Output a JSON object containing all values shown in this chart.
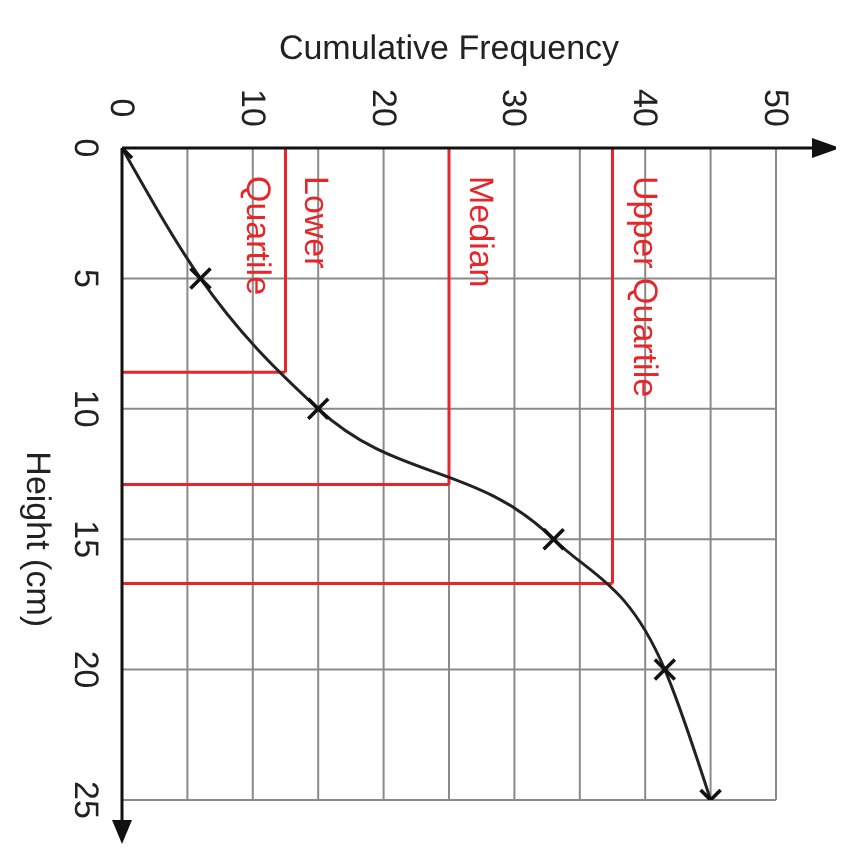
{
  "chart_data": {
    "type": "line",
    "xlabel": "Cumulative Frequency",
    "ylabel": "Height (cm)",
    "x": [
      0,
      6,
      15,
      33,
      41.5,
      45
    ],
    "values": [
      0,
      5,
      10,
      15,
      20,
      25
    ],
    "color": "#222222",
    "marker": "cross",
    "line_style": "solid",
    "xlim": [
      0,
      50
    ],
    "xticks": [
      0,
      {
        "value": 5,
        "label": null
      },
      10,
      {
        "value": 15,
        "label": null
      },
      20,
      {
        "value": 25,
        "label": null
      },
      30,
      {
        "value": 35,
        "label": null
      },
      40,
      {
        "value": 45,
        "label": null
      },
      50
    ],
    "ylim": [
      25,
      0
    ],
    "yticks": [
      0,
      5,
      10,
      15,
      20,
      25
    ],
    "grid": true,
    "ref_lines": [
      {
        "axis": "x",
        "value": 12.5,
        "label": "Lower Quartile",
        "color": "#e8262a"
      },
      {
        "axis": "x",
        "value": 25,
        "label": "Median",
        "color": "#e8262a"
      },
      {
        "axis": "x",
        "value": 37.5,
        "label": "Upper Quartile",
        "color": "#e8262a"
      },
      {
        "axis": "y",
        "value": 8.6,
        "color": "#e8262a"
      },
      {
        "axis": "y",
        "value": 12.9,
        "color": "#e8262a"
      },
      {
        "axis": "y",
        "value": 16.7,
        "color": "#e8262a"
      }
    ]
  }
}
